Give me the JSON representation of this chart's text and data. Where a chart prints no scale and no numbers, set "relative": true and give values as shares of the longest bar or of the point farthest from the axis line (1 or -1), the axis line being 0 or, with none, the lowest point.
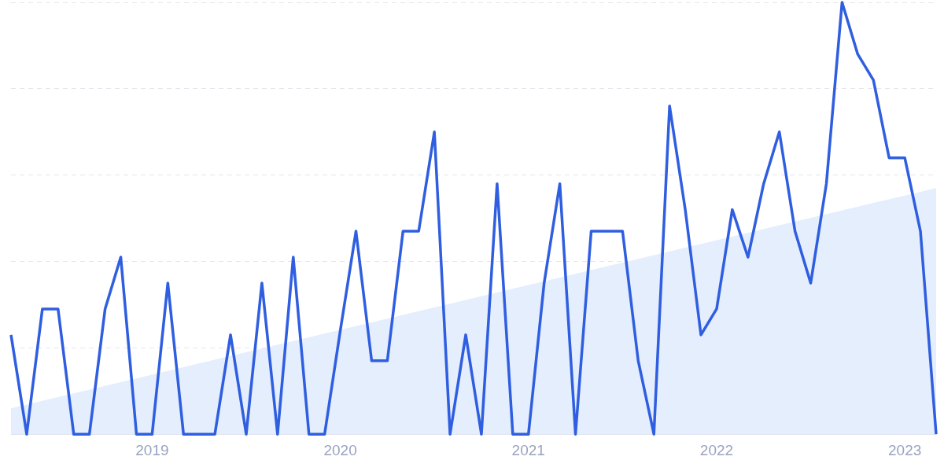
{
  "chart_data": {
    "type": "line",
    "relative": true,
    "grid": "y",
    "marker": "none",
    "line_style": "solid",
    "categories": [
      null,
      null,
      null,
      null,
      null,
      null,
      null,
      null,
      null,
      "2019",
      null,
      null,
      null,
      null,
      null,
      null,
      null,
      null,
      null,
      null,
      null,
      "2020",
      null,
      null,
      null,
      null,
      null,
      null,
      null,
      null,
      null,
      null,
      null,
      "2021",
      null,
      null,
      null,
      null,
      null,
      null,
      null,
      null,
      null,
      null,
      null,
      "2022",
      null,
      null,
      null,
      null,
      null,
      null,
      null,
      null,
      null,
      null,
      null,
      "2023",
      null,
      null
    ],
    "series": [
      {
        "type": "area",
        "color": "#e4eefc",
        "values": [
          0.06,
          null,
          null,
          null,
          null,
          null,
          null,
          null,
          null,
          null,
          null,
          null,
          null,
          null,
          null,
          null,
          null,
          null,
          null,
          null,
          null,
          null,
          null,
          null,
          null,
          null,
          null,
          null,
          null,
          null,
          null,
          null,
          null,
          null,
          null,
          null,
          null,
          null,
          null,
          null,
          null,
          null,
          null,
          null,
          null,
          null,
          null,
          null,
          null,
          null,
          null,
          null,
          null,
          null,
          null,
          null,
          null,
          null,
          null,
          0.57
        ]
      },
      {
        "color": "#2f5ee0",
        "values": [
          0.23,
          0,
          0.29,
          0.29,
          0,
          0,
          0.29,
          0.41,
          0,
          0,
          0.35,
          0,
          0,
          0,
          0.23,
          0,
          0.35,
          0,
          0.41,
          0,
          0,
          0.24,
          0.47,
          0.17,
          0.17,
          0.47,
          0.47,
          0.7,
          0,
          0.23,
          0,
          0.58,
          0,
          0,
          0.35,
          0.58,
          0,
          0.47,
          0.47,
          0.47,
          0.17,
          0,
          0.76,
          0.52,
          0.23,
          0.29,
          0.52,
          0.41,
          0.58,
          0.7,
          0.47,
          0.35,
          0.58,
          1,
          0.88,
          0.82,
          0.64,
          0.64,
          0.47,
          0
        ]
      }
    ]
  }
}
